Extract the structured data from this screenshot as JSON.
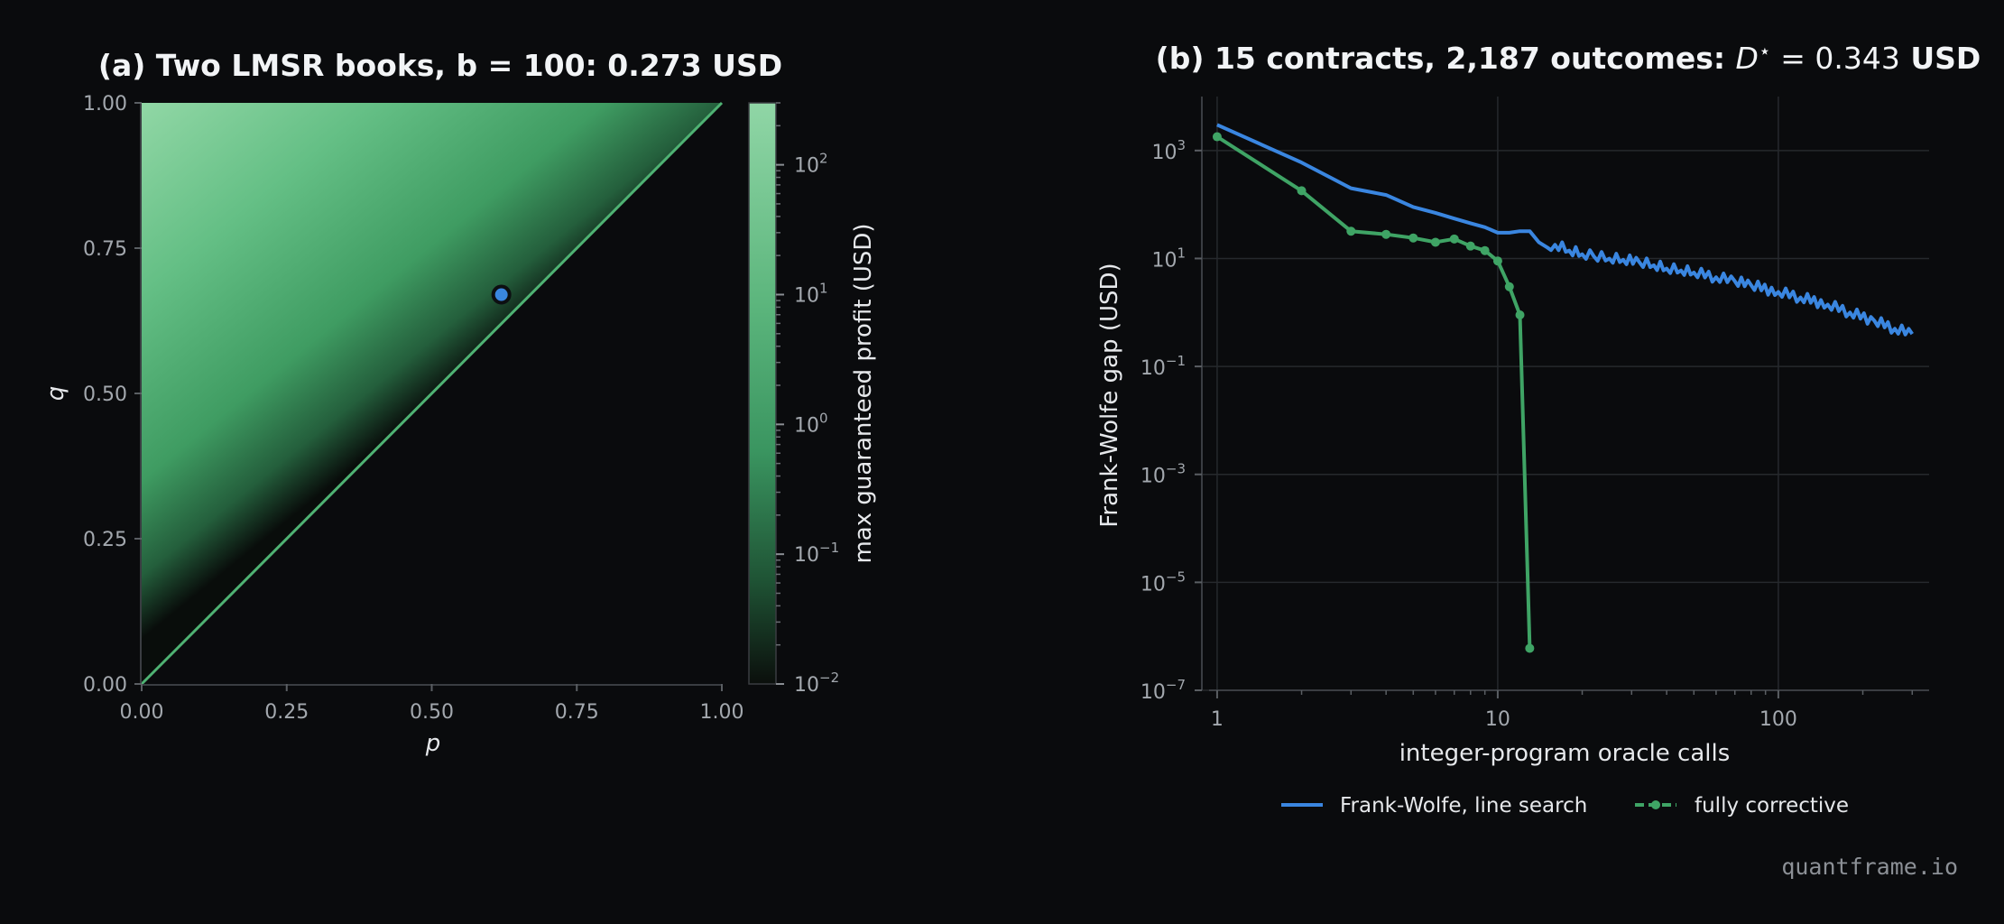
{
  "colors": {
    "background": "#0a0b0d",
    "green": "#3fa465",
    "blue": "#3a86e0",
    "axis": "#3a3d42",
    "grid": "#26292d"
  },
  "watermark": "quantframe.io",
  "chart_data": [
    {
      "type": "heatmap",
      "title": "(a) Two LMSR books, b = 100: 0.273 USD",
      "xlabel": "p",
      "ylabel": "q",
      "xlim": [
        0,
        1
      ],
      "ylim": [
        0,
        1
      ],
      "xticks": [
        "0.00",
        "0.25",
        "0.50",
        "0.75",
        "1.00"
      ],
      "yticks": [
        "0.00",
        "0.25",
        "0.50",
        "0.75",
        "1.00"
      ],
      "region": "q > p",
      "diagonal_line": "q = p",
      "marker": {
        "p": 0.62,
        "q": 0.67
      },
      "colorbar": {
        "label": "max guaranteed profit (USD)",
        "scale": "log",
        "range": [
          0.01,
          300
        ],
        "ticks": [
          {
            "base": "10",
            "exp": "2"
          },
          {
            "base": "10",
            "exp": "1"
          },
          {
            "base": "10",
            "exp": "0"
          },
          {
            "base": "10",
            "exp": "−1"
          },
          {
            "base": "10",
            "exp": "−2"
          }
        ]
      }
    },
    {
      "type": "line",
      "title_text": "(b) 15 contracts, 2,187 outcomes: ",
      "title_math": "D",
      "title_math_sup": "⋆",
      "title_value": " = 0.343",
      "title_unit": " USD",
      "xlabel": "integer-program oracle calls",
      "ylabel": "Frank-Wolfe gap (USD)",
      "xscale": "log",
      "yscale": "log",
      "xlim": [
        0.95,
        320
      ],
      "ylim": [
        1e-07,
        10000
      ],
      "xticks": [
        "1",
        "10",
        "100"
      ],
      "yticks": [
        {
          "base": "10",
          "exp": "3"
        },
        {
          "base": "10",
          "exp": "1"
        },
        {
          "base": "10",
          "exp": "−1"
        },
        {
          "base": "10",
          "exp": "−3"
        },
        {
          "base": "10",
          "exp": "−5"
        },
        {
          "base": "10",
          "exp": "−7"
        }
      ],
      "grid": true,
      "legend_position": "bottom-center",
      "series": [
        {
          "name": "Frank-Wolfe, line search",
          "x": [
            1,
            2,
            3,
            4,
            5,
            6,
            7,
            8,
            9,
            10,
            11,
            12,
            13,
            14,
            15,
            16,
            18,
            20,
            22,
            25,
            28,
            32,
            36,
            40,
            45,
            50,
            60,
            70,
            80,
            100,
            120,
            150,
            180,
            220,
            260,
            300
          ],
          "y": [
            3000,
            600,
            200,
            150,
            90,
            70,
            55,
            45,
            38,
            30,
            30,
            32,
            32,
            20,
            16,
            18,
            14,
            12,
            11,
            10,
            9.5,
            8.5,
            7.5,
            6.5,
            6,
            5.5,
            4.5,
            3.8,
            3.2,
            2.4,
            1.9,
            1.4,
            1.0,
            0.7,
            0.5,
            0.4
          ]
        },
        {
          "name": "fully corrective",
          "markers": true,
          "x": [
            1,
            2,
            3,
            4,
            5,
            6,
            7,
            8,
            9,
            10,
            11,
            12,
            13
          ],
          "y": [
            1800,
            180,
            32,
            28,
            24,
            20,
            23,
            17,
            14,
            9,
            3,
            0.9,
            6e-07
          ]
        }
      ]
    }
  ]
}
